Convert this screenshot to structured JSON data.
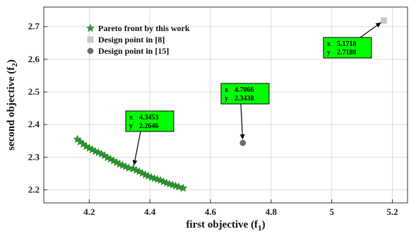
{
  "chart_data": {
    "type": "scatter",
    "title": "",
    "xlabel": "first objective (f",
    "xlabel_sub": "1",
    "xlabel_end": ")",
    "ylabel": "second objective (f",
    "ylabel_sub": "2",
    "ylabel_end": ")",
    "xlim": [
      4.05,
      5.25
    ],
    "ylim": [
      2.16,
      2.76
    ],
    "xticks": [
      4.2,
      4.4,
      4.6,
      4.8,
      5,
      5.2
    ],
    "xtick_labels": [
      "4.2",
      "4.4",
      "4.6",
      "4.8",
      "5",
      "5.2"
    ],
    "yticks": [
      2.2,
      2.3,
      2.4,
      2.5,
      2.6,
      2.7
    ],
    "ytick_labels": [
      "2.2",
      "2.3",
      "2.4",
      "2.5",
      "2.6",
      "2.7"
    ],
    "grid": true,
    "legend_position": "top-left",
    "series": [
      {
        "name": "Pareto front by this work",
        "marker": "star",
        "color": "#2e9b2e",
        "x": [
          4.161,
          4.17,
          4.18,
          4.19,
          4.2,
          4.21,
          4.22,
          4.23,
          4.24,
          4.25,
          4.26,
          4.27,
          4.28,
          4.29,
          4.3,
          4.31,
          4.32,
          4.33,
          4.3453,
          4.355,
          4.365,
          4.375,
          4.385,
          4.395,
          4.405,
          4.415,
          4.425,
          4.435,
          4.445,
          4.455,
          4.465,
          4.475,
          4.485,
          4.495,
          4.51
        ],
        "y": [
          2.355,
          2.347,
          2.34,
          2.333,
          2.328,
          2.323,
          2.318,
          2.314,
          2.31,
          2.305,
          2.299,
          2.294,
          2.289,
          2.284,
          2.279,
          2.275,
          2.271,
          2.267,
          2.2646,
          2.26,
          2.256,
          2.251,
          2.246,
          2.242,
          2.238,
          2.235,
          2.232,
          2.229,
          2.225,
          2.221,
          2.218,
          2.215,
          2.212,
          2.209,
          2.205
        ]
      },
      {
        "name": "Design point in [8]",
        "marker": "square",
        "color": "#c8c8c8",
        "x": [
          5.1718
        ],
        "y": [
          2.7188
        ]
      },
      {
        "name": "Design point in [15]",
        "marker": "circle",
        "color": "#6e6e6e",
        "x": [
          4.7066
        ],
        "y": [
          2.3438
        ]
      }
    ],
    "datatips": [
      {
        "x_label": "x",
        "x_value": "4.3453",
        "y_label": "y",
        "y_value": "2.2646",
        "target_x": 4.3453,
        "target_y": 2.2646,
        "box_color": "#00ff00"
      },
      {
        "x_label": "x",
        "x_value": "4.7066",
        "y_label": "y",
        "y_value": "2.3438",
        "target_x": 4.7066,
        "target_y": 2.3438,
        "box_color": "#00ff00"
      },
      {
        "x_label": "x",
        "x_value": "5.1718",
        "y_label": "y",
        "y_value": "2.7188",
        "target_x": 5.1718,
        "target_y": 2.7188,
        "box_color": "#00ff00"
      }
    ]
  }
}
